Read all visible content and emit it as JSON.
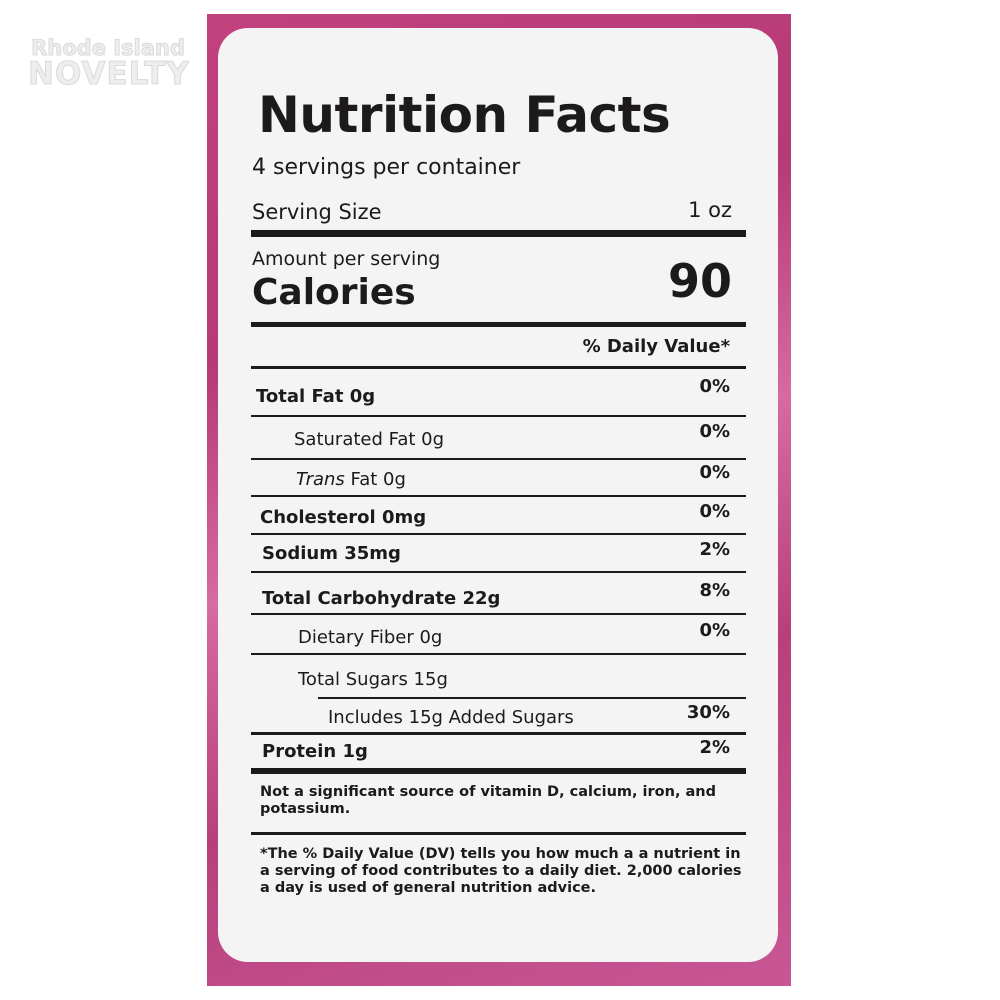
{
  "watermark": {
    "line1": "Rhode Island",
    "line2": "NOVELTY"
  },
  "label": {
    "title": "Nutrition Facts",
    "servings": "4 servings per container",
    "serving_size_label": "Serving Size",
    "serving_size_value": "1 oz",
    "amount_per_serving": "Amount per serving",
    "calories_label": "Calories",
    "calories_value": "90",
    "dv_header": "% Daily Value*",
    "rows": [
      {
        "name": "Total Fat 0g",
        "dv": "0%"
      },
      {
        "name": "Saturated Fat 0g",
        "dv": "0%"
      },
      {
        "name_italic": "Trans",
        "name": " Fat 0g",
        "dv": "0%"
      },
      {
        "name": "Cholesterol 0mg",
        "dv": "0%"
      },
      {
        "name": "Sodium 35mg",
        "dv": "2%"
      },
      {
        "name": "Total Carbohydrate 22g",
        "dv": "8%"
      },
      {
        "name": "Dietary Fiber 0g",
        "dv": "0%"
      },
      {
        "name": "Total Sugars 15g",
        "dv": ""
      },
      {
        "name": "Includes 15g Added Sugars",
        "dv": "30%"
      },
      {
        "name": "Protein 1g",
        "dv": "2%"
      }
    ],
    "note": "Not a significant source of vitamin D, calcium, iron, and potassium.",
    "footnote": "*The % Daily Value (DV) tells you how much a a nutrient in a serving of food contributes to a daily diet. 2,000 calories a day is used of general nutrition advice."
  }
}
